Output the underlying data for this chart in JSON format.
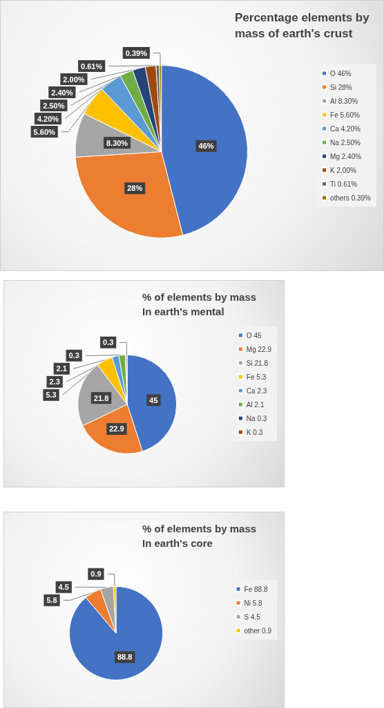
{
  "chart_data": [
    {
      "type": "pie",
      "title": "Percentage elements by mass of earth's crust",
      "categories": [
        "O 46%",
        "Si 28%",
        "Al 8.30%",
        "Fe 5.60%",
        "Ca 4.20%",
        "Na 2.50%",
        "Mg 2.40%",
        "K 2.00%",
        "Ti 0.61%",
        "others 0.39%"
      ],
      "values": [
        46,
        28,
        8.3,
        5.6,
        4.2,
        2.5,
        2.4,
        2.0,
        0.61,
        0.39
      ],
      "value_labels": [
        "46%",
        "28%",
        "8.30%",
        "5.60%",
        "4.20%",
        "2.50%",
        "2.40%",
        "2.00%",
        "0.61%",
        "0.39%"
      ],
      "colors": [
        "#4472c4",
        "#ed7d31",
        "#a5a5a5",
        "#ffc000",
        "#5b9bd5",
        "#70ad47",
        "#264478",
        "#9e480e",
        "#636363",
        "#997300"
      ],
      "legend": "right"
    },
    {
      "type": "pie",
      "title": "% of elements by mass In earth's mental",
      "categories": [
        "O 45",
        "Mg 22.9",
        "Si 21.8",
        "Fe 5.3",
        "Ca 2.3",
        "Al 2.1",
        "Na 0.3",
        "K 0.3"
      ],
      "values": [
        45,
        22.9,
        21.8,
        5.3,
        2.3,
        2.1,
        0.3,
        0.3
      ],
      "colors": [
        "#4472c4",
        "#ed7d31",
        "#a5a5a5",
        "#ffc000",
        "#5b9bd5",
        "#70ad47",
        "#264478",
        "#9e480e"
      ],
      "data_labels": true,
      "legend": "right"
    },
    {
      "type": "pie",
      "title": "% of elements by mass In earth's core",
      "categories": [
        "Fe 88.8",
        "Ni 5.8",
        "S 4.5",
        "other 0.9"
      ],
      "values": [
        88.8,
        5.8,
        4.5,
        0.9
      ],
      "colors": [
        "#4472c4",
        "#ed7d31",
        "#a5a5a5",
        "#ffc000"
      ],
      "data_labels": true,
      "legend": "right"
    }
  ]
}
